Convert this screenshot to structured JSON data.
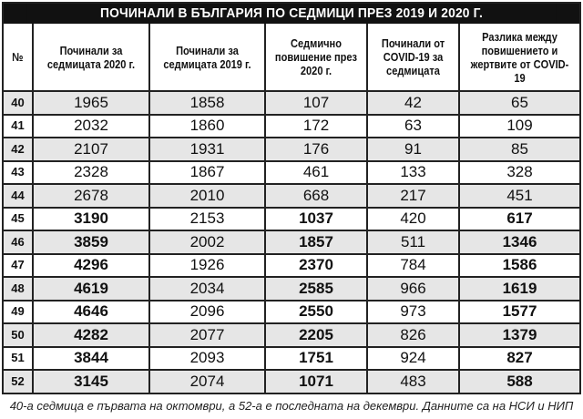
{
  "title": "ПОЧИНАЛИ В БЪЛГАРИЯ ПО СЕДМИЦИ ПРЕЗ 2019 И 2020 Г.",
  "headers": [
    "№",
    "Починали за седмицата 2020 г.",
    "Починали за седмицата 2019 г.",
    "Седмично повишение през 2020 г.",
    "Починали от COVID-19 за седмицата",
    "Разлика между повишението и жертвите от COVID-19"
  ],
  "rows": [
    {
      "week": "40",
      "d2020": "1965",
      "d2019": "1858",
      "increase": "107",
      "covid": "42",
      "diff": "65",
      "bold": false
    },
    {
      "week": "41",
      "d2020": "2032",
      "d2019": "1860",
      "increase": "172",
      "covid": "63",
      "diff": "109",
      "bold": false
    },
    {
      "week": "42",
      "d2020": "2107",
      "d2019": "1931",
      "increase": "176",
      "covid": "91",
      "diff": "85",
      "bold": false
    },
    {
      "week": "43",
      "d2020": "2328",
      "d2019": "1867",
      "increase": "461",
      "covid": "133",
      "diff": "328",
      "bold": false
    },
    {
      "week": "44",
      "d2020": "2678",
      "d2019": "2010",
      "increase": "668",
      "covid": "217",
      "diff": "451",
      "bold": false
    },
    {
      "week": "45",
      "d2020": "3190",
      "d2019": "2153",
      "increase": "1037",
      "covid": "420",
      "diff": "617",
      "bold": true
    },
    {
      "week": "46",
      "d2020": "3859",
      "d2019": "2002",
      "increase": "1857",
      "covid": "511",
      "diff": "1346",
      "bold": true
    },
    {
      "week": "47",
      "d2020": "4296",
      "d2019": "1926",
      "increase": "2370",
      "covid": "784",
      "diff": "1586",
      "bold": true
    },
    {
      "week": "48",
      "d2020": "4619",
      "d2019": "2034",
      "increase": "2585",
      "covid": "966",
      "diff": "1619",
      "bold": true
    },
    {
      "week": "49",
      "d2020": "4646",
      "d2019": "2096",
      "increase": "2550",
      "covid": "973",
      "diff": "1577",
      "bold": true
    },
    {
      "week": "50",
      "d2020": "4282",
      "d2019": "2077",
      "increase": "2205",
      "covid": "826",
      "diff": "1379",
      "bold": true
    },
    {
      "week": "51",
      "d2020": "3844",
      "d2019": "2093",
      "increase": "1751",
      "covid": "924",
      "diff": "827",
      "bold": true
    },
    {
      "week": "52",
      "d2020": "3145",
      "d2019": "2074",
      "increase": "1071",
      "covid": "483",
      "diff": "588",
      "bold": true
    }
  ],
  "footnote": "40-а седмица е първата на октомври, а 52-а е последната на декември. Данните са на НСИ и НИП"
}
